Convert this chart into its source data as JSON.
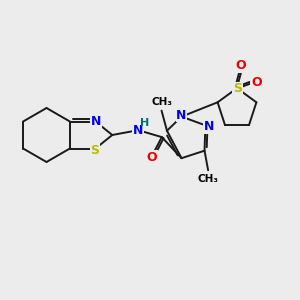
{
  "bg_color": "#ececec",
  "bond_color": "#1a1a1a",
  "bond_width": 1.4,
  "atom_colors": {
    "N": "#0000ee",
    "O": "#ee0000",
    "S": "#bbbb00",
    "H": "#007070",
    "C": "#1a1a1a"
  },
  "figsize": [
    3.0,
    3.0
  ],
  "dpi": 100,
  "xlim": [
    0,
    10
  ],
  "ylim": [
    0,
    10
  ]
}
